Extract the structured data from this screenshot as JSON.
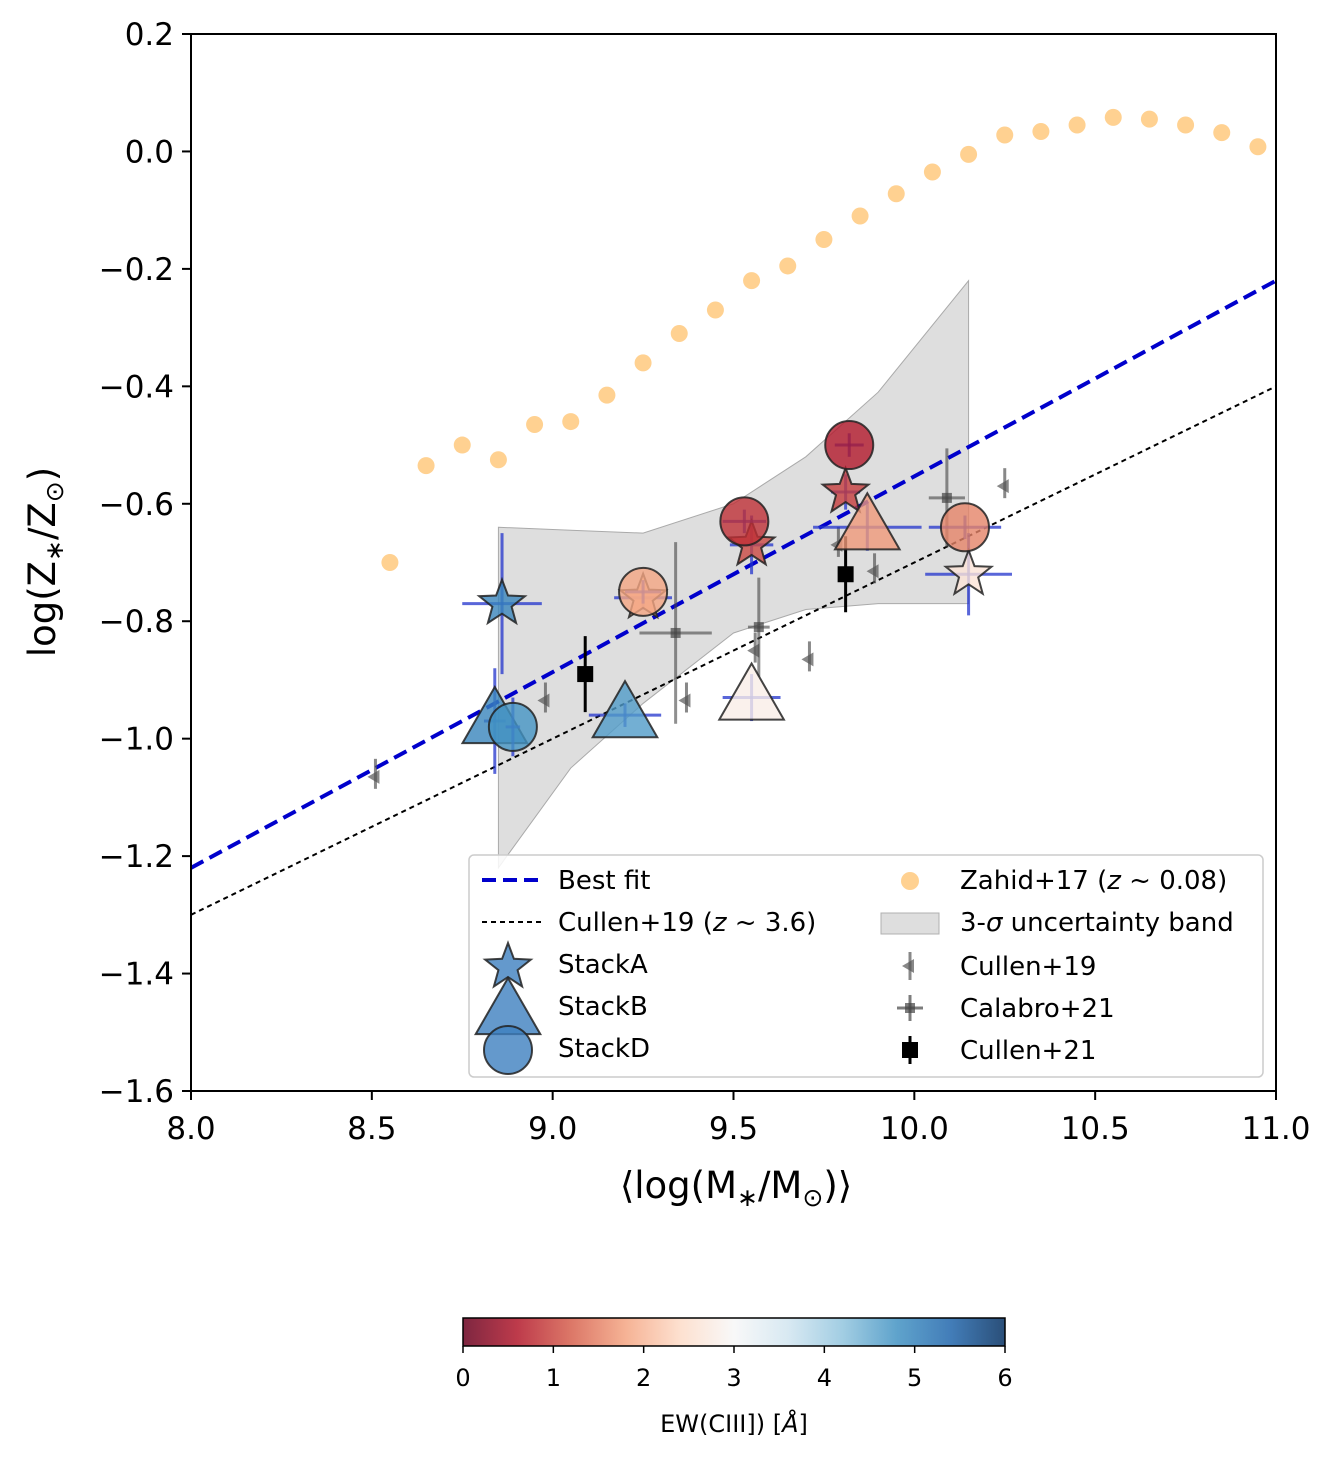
{
  "chart_data": {
    "type": "scatter",
    "xlabel": "⟨log(M∗/M⊙)⟩",
    "ylabel": "log(Z∗/Z⊙)",
    "xlim": [
      8.0,
      11.0
    ],
    "ylim": [
      -1.6,
      0.2
    ],
    "x_ticks": [
      8.0,
      8.5,
      9.0,
      9.5,
      10.0,
      10.5,
      11.0
    ],
    "x_tick_labels": [
      "8.0",
      "8.5",
      "9.0",
      "9.5",
      "10.0",
      "10.5",
      "11.0"
    ],
    "y_ticks": [
      0.2,
      0.0,
      -0.2,
      -0.4,
      -0.6,
      -0.8,
      -1.0,
      -1.2,
      -1.4,
      -1.6
    ],
    "y_tick_labels": [
      "0.2",
      "0.0",
      "−0.2",
      "−0.4",
      "−0.6",
      "−0.8",
      "−1.0",
      "−1.2",
      "−1.4",
      "−1.6"
    ],
    "best_fit": {
      "name": "Best fit",
      "x": [
        8.0,
        11.0
      ],
      "y": [
        -1.22,
        -0.22
      ],
      "color": "#0000cc"
    },
    "cullen19_relation": {
      "name": "Cullen+19 (z ~ 3.6)",
      "x": [
        8.0,
        11.0
      ],
      "y": [
        -1.3,
        -0.4
      ],
      "color": "#000000"
    },
    "uncertainty_band": {
      "name": "3-σ uncertainty band",
      "x": [
        8.85,
        9.05,
        9.25,
        9.5,
        9.7,
        9.9,
        10.15
      ],
      "upper": [
        -0.64,
        -0.645,
        -0.65,
        -0.6,
        -0.52,
        -0.41,
        -0.22
      ],
      "lower": [
        -1.22,
        -1.05,
        -0.94,
        -0.82,
        -0.78,
        -0.77,
        -0.77
      ]
    },
    "zahid17": {
      "name": "Zahid+17 (z ~ 0.08)",
      "color": "#ffb347",
      "x": [
        8.55,
        8.65,
        8.75,
        8.85,
        8.95,
        9.05,
        9.15,
        9.25,
        9.35,
        9.45,
        9.55,
        9.65,
        9.75,
        9.85,
        9.95,
        10.05,
        10.15,
        10.25,
        10.35,
        10.45,
        10.55,
        10.65,
        10.75,
        10.85,
        10.95
      ],
      "y": [
        -0.7,
        -0.535,
        -0.5,
        -0.525,
        -0.465,
        -0.46,
        -0.415,
        -0.36,
        -0.31,
        -0.27,
        -0.22,
        -0.195,
        -0.15,
        -0.11,
        -0.072,
        -0.035,
        -0.005,
        0.028,
        0.034,
        0.045,
        0.058,
        0.055,
        0.045,
        0.032,
        0.008
      ]
    },
    "cullen19_points": {
      "name": "Cullen+19",
      "x": [
        8.51,
        8.98,
        9.37,
        9.56,
        9.71,
        9.79,
        9.89,
        10.25
      ],
      "y": [
        -1.065,
        -0.935,
        -0.935,
        -0.85,
        -0.865,
        -0.67,
        -0.715,
        -0.57
      ]
    },
    "calabro21_points": {
      "name": "Calabro+21",
      "x": [
        9.34,
        9.57,
        10.09
      ],
      "y": [
        -0.82,
        -0.81,
        -0.59
      ]
    },
    "cullen21_points": {
      "name": "Cullen+21",
      "x": [
        9.09,
        9.81
      ],
      "y": [
        -0.89,
        -0.72
      ]
    },
    "stacks": [
      {
        "name": "StackA",
        "marker": "star",
        "points": [
          {
            "x": 8.86,
            "y": -0.77,
            "ew": 5.0
          },
          {
            "x": 9.25,
            "y": -0.76,
            "ew": 2.0
          },
          {
            "x": 9.55,
            "y": -0.67,
            "ew": 1.0
          },
          {
            "x": 9.81,
            "y": -0.58,
            "ew": 0.9
          },
          {
            "x": 10.15,
            "y": -0.72,
            "ew": 2.6
          }
        ]
      },
      {
        "name": "StackB",
        "marker": "triangle",
        "points": [
          {
            "x": 8.84,
            "y": -0.97,
            "ew": 5.0
          },
          {
            "x": 9.2,
            "y": -0.96,
            "ew": 4.7
          },
          {
            "x": 9.55,
            "y": -0.93,
            "ew": 2.8
          },
          {
            "x": 9.87,
            "y": -0.64,
            "ew": 1.7
          }
        ]
      },
      {
        "name": "StackD",
        "marker": "circle",
        "points": [
          {
            "x": 8.89,
            "y": -0.98,
            "ew": 4.8
          },
          {
            "x": 9.25,
            "y": -0.75,
            "ew": 1.8
          },
          {
            "x": 9.53,
            "y": -0.63,
            "ew": 0.8
          },
          {
            "x": 9.82,
            "y": -0.5,
            "ew": 0.6
          },
          {
            "x": 10.14,
            "y": -0.64,
            "ew": 1.5
          }
        ]
      }
    ],
    "legend": {
      "placement": "lower-right",
      "entries": [
        "Best fit",
        "Cullen+19 (z ~ 3.6)",
        "StackA",
        "StackB",
        "StackD",
        "Zahid+17 (z ~ 0.08)",
        "3-σ uncertainty band",
        "Cullen+19",
        "Calabro+21",
        "Cullen+21"
      ]
    },
    "colorbar": {
      "label": "EW(CIII]) [Å]",
      "range": [
        0,
        6
      ],
      "ticks": [
        0,
        1,
        2,
        3,
        4,
        5,
        6
      ],
      "tick_labels": [
        "0",
        "1",
        "2",
        "3",
        "4",
        "5",
        "6"
      ],
      "colormap": [
        "#67001f",
        "#b2182b",
        "#d6604d",
        "#f4a582",
        "#fddbc7",
        "#f7f7f7",
        "#d1e5f0",
        "#92c5de",
        "#4393c3",
        "#2166ac",
        "#053061"
      ]
    }
  },
  "legend_labels": {
    "best_fit": "Best fit",
    "cullen19_prefix": "Cullen+19 (",
    "cullen19_z": "z",
    "cullen19_suffix": " ~ 3.6)",
    "stackA": "StackA",
    "stackB": "StackB",
    "stackD": "StackD",
    "zahid_prefix": "Zahid+17 (",
    "zahid_z": "z",
    "zahid_suffix": " ~ 0.08)",
    "band_prefix": "3-",
    "band_sigma": "σ",
    "band_suffix": " uncertainty band",
    "cullen19_pts": "Cullen+19",
    "calabro21": "Calabro+21",
    "cullen21": "Cullen+21"
  },
  "axis_text": {
    "x_left": "⟨log(M",
    "x_star": "∗",
    "x_mid": "/M",
    "x_sun": "⊙",
    "x_right": ")⟩",
    "y_left": "log(Z",
    "y_star": "∗",
    "y_mid": "/Z",
    "y_sun": "⊙",
    "y_right": ")"
  },
  "colorbar_label": {
    "prefix": "EW(CIII]) [",
    "unit": "Å",
    "suffix": "]"
  }
}
